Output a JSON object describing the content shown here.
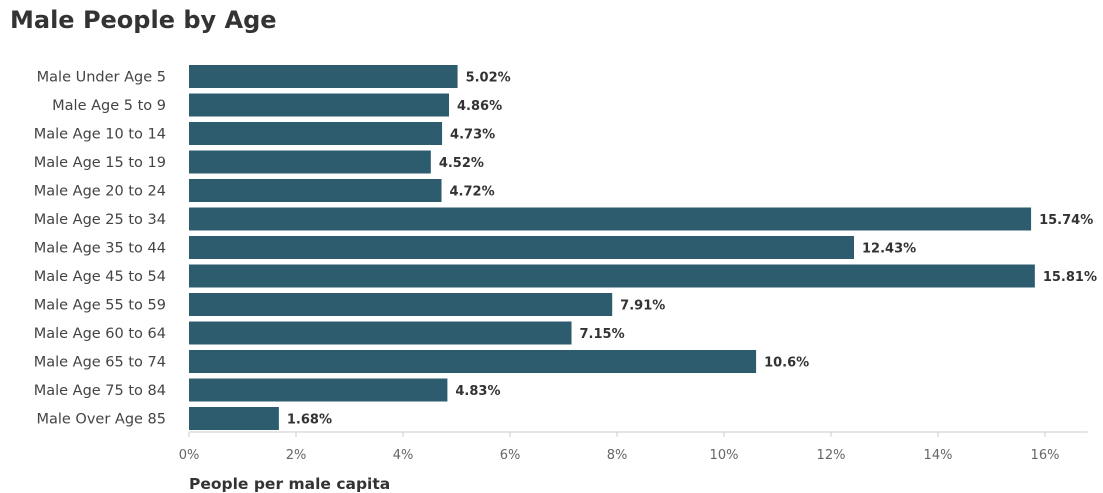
{
  "chart_data": {
    "type": "bar",
    "orientation": "horizontal",
    "title": "Male People by Age",
    "xlabel": "People per male capita",
    "ylabel": "",
    "xlim": [
      0,
      16.8
    ],
    "ticks": [
      0,
      2,
      4,
      6,
      8,
      10,
      12,
      14,
      16
    ],
    "tick_labels": [
      "0%",
      "2%",
      "4%",
      "6%",
      "8%",
      "10%",
      "12%",
      "14%",
      "16%"
    ],
    "grid": false,
    "bar_color": "#2d5c6e",
    "categories": [
      "Male Under Age 5",
      "Male Age 5 to 9",
      "Male Age 10 to 14",
      "Male Age 15 to 19",
      "Male Age 20 to 24",
      "Male Age 25 to 34",
      "Male Age 35 to 44",
      "Male Age 45 to 54",
      "Male Age 55 to 59",
      "Male Age 60 to 64",
      "Male Age 65 to 74",
      "Male Age 75 to 84",
      "Male Over Age 85"
    ],
    "values": [
      5.02,
      4.86,
      4.73,
      4.52,
      4.72,
      15.74,
      12.43,
      15.81,
      7.91,
      7.15,
      10.6,
      4.83,
      1.68
    ],
    "value_labels": [
      "5.02%",
      "4.86%",
      "4.73%",
      "4.52%",
      "4.72%",
      "15.74%",
      "12.43%",
      "15.81%",
      "7.91%",
      "7.15%",
      "10.6%",
      "4.83%",
      "1.68%"
    ]
  }
}
